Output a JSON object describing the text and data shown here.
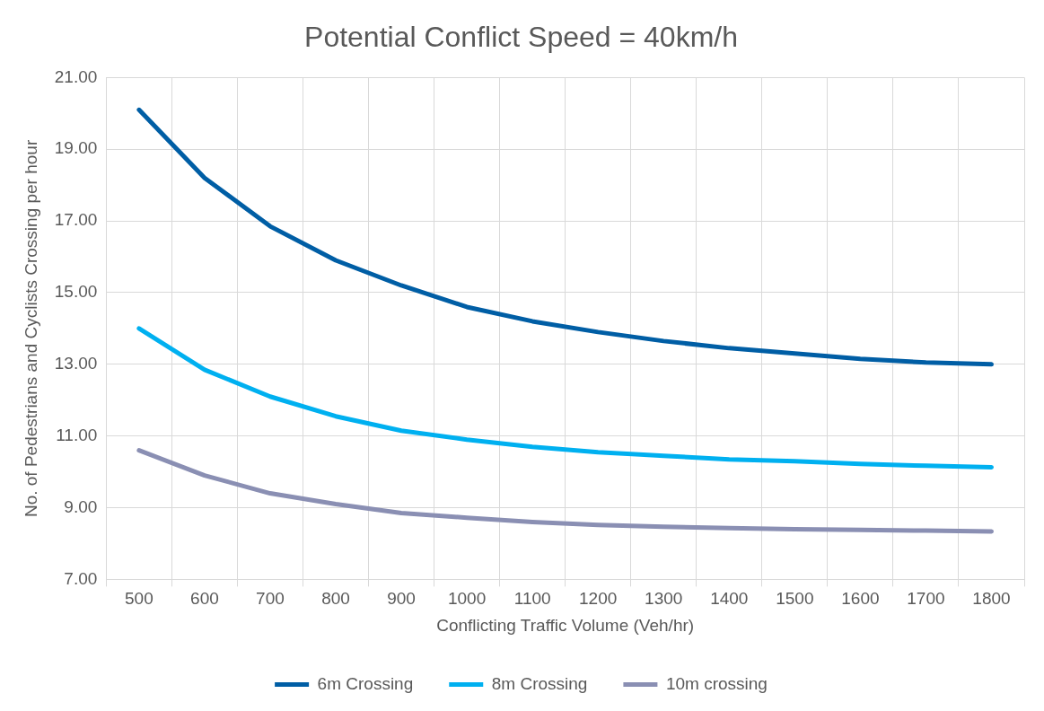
{
  "chart_data": {
    "type": "line",
    "title": "Potential Conflict Speed = 40km/h",
    "xlabel": "Conflicting Traffic Volume (Veh/hr)",
    "ylabel": "No. of Pedestrians and Cyclists Crossing per hour",
    "categories": [
      "500",
      "600",
      "700",
      "800",
      "900",
      "1000",
      "1100",
      "1200",
      "1300",
      "1400",
      "1500",
      "1600",
      "1700",
      "1800"
    ],
    "series": [
      {
        "name": "6m Crossing",
        "color": "#005ea5",
        "values": [
          20.1,
          18.2,
          16.85,
          15.9,
          15.2,
          14.6,
          14.2,
          13.9,
          13.65,
          13.45,
          13.3,
          13.15,
          13.05,
          13.0
        ]
      },
      {
        "name": "8m Crossing",
        "color": "#00b0f0",
        "values": [
          14.0,
          12.85,
          12.1,
          11.55,
          11.15,
          10.9,
          10.7,
          10.55,
          10.45,
          10.35,
          10.3,
          10.22,
          10.17,
          10.13
        ]
      },
      {
        "name": "10m crossing",
        "color": "#8a8fb3",
        "values": [
          10.6,
          9.9,
          9.4,
          9.1,
          8.85,
          8.72,
          8.6,
          8.52,
          8.47,
          8.43,
          8.4,
          8.38,
          8.36,
          8.34
        ]
      }
    ],
    "ylim": [
      7,
      21
    ],
    "yticks": [
      {
        "value": 7,
        "label": "7.00"
      },
      {
        "value": 9,
        "label": "9.00"
      },
      {
        "value": 11,
        "label": "11.00"
      },
      {
        "value": 13,
        "label": "13.00"
      },
      {
        "value": 15,
        "label": "15.00"
      },
      {
        "value": 17,
        "label": "17.00"
      },
      {
        "value": 19,
        "label": "19.00"
      },
      {
        "value": 21,
        "label": "21.00"
      }
    ],
    "grid": true,
    "legend": "bottom",
    "marker": "none",
    "line_style": "solid"
  }
}
